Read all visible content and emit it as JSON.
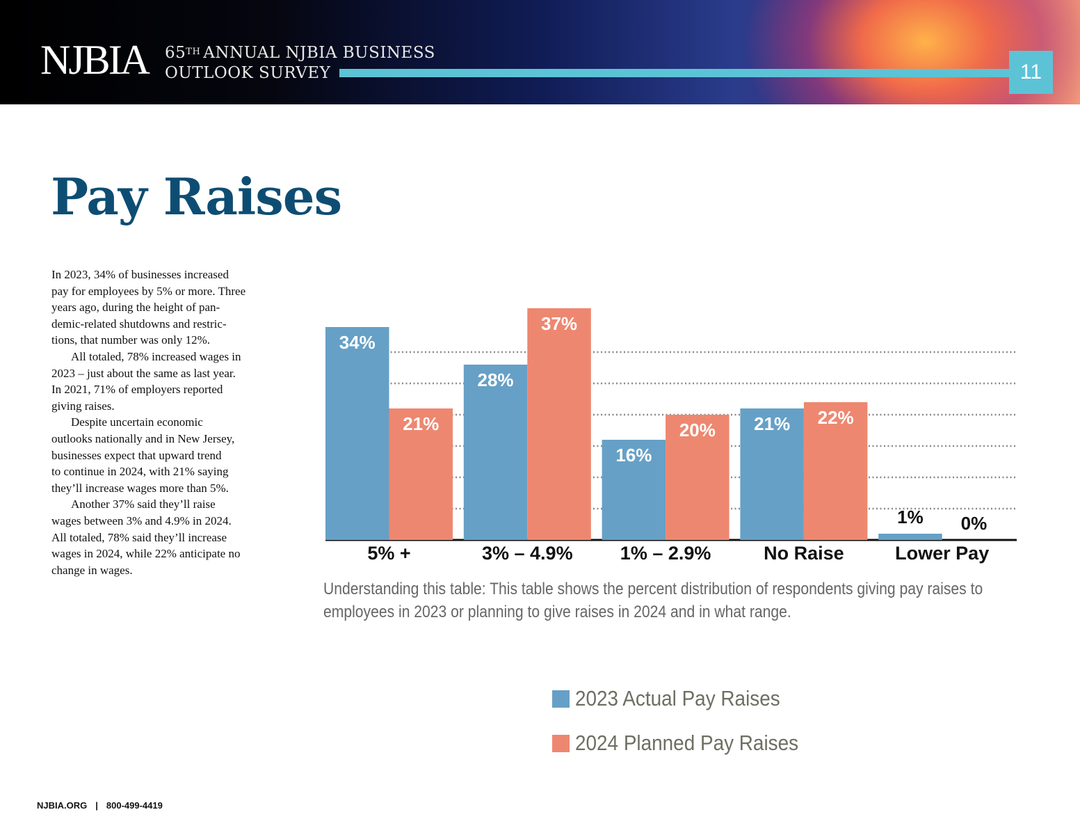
{
  "header": {
    "logo": "NJBIA",
    "survey_number": "65",
    "survey_number_suffix": "TH",
    "survey_line1": "ANNUAL NJBIA BUSINESS",
    "survey_line2": "OUTLOOK SURVEY",
    "page_number": "11"
  },
  "title": "Pay Raises",
  "body": {
    "paragraphs": [
      {
        "lines": [
          "In 2023, 34% of businesses increased",
          "pay for employees by 5% or more. Three",
          "years ago, during the height of pan-",
          "demic-related shutdowns and restric-",
          "tions, that number was only 12%."
        ]
      },
      {
        "lines": [
          "All totaled, 78% increased wages in",
          "2023 – just about the same as last year.",
          "In 2021, 71% of employers reported",
          "giving raises."
        ]
      },
      {
        "lines": [
          "Despite uncertain economic",
          "outlooks nationally and in New Jersey,",
          "businesses expect that upward trend",
          "to continue in 2024, with 21% saying",
          "they’ll increase wages more than 5%."
        ]
      },
      {
        "lines": [
          "Another 37% said they’ll raise",
          "wages between 3% and 4.9% in 2024.",
          "All totaled, 78% said they’ll increase",
          "wages in 2024, while 22% anticipate no",
          "change in wages."
        ]
      }
    ]
  },
  "chart_data": {
    "type": "bar",
    "categories": [
      "5% +",
      "3% – 4.9%",
      "1% – 2.9%",
      "No Raise",
      "Lower Pay"
    ],
    "series": [
      {
        "name": "2023 Actual Pay Raises",
        "color": "#66a0c6",
        "values": [
          34,
          28,
          16,
          21,
          1
        ],
        "value_labels": [
          "34%",
          "28%",
          "16%",
          "21%",
          "1%"
        ]
      },
      {
        "name": "2024 Planned Pay Raises",
        "color": "#ee8770",
        "values": [
          21,
          37,
          20,
          22,
          0
        ],
        "value_labels": [
          "21%",
          "37%",
          "20%",
          "22%",
          "0%"
        ]
      }
    ],
    "ylim": [
      0,
      38
    ],
    "yticks": [
      0,
      5,
      10,
      15,
      20,
      25,
      30
    ],
    "grid": true,
    "note": "Understanding this table: This table shows the percent distribution of respondents giving pay raises to employees in 2023 or planning to give raises in 2024 and in what range."
  },
  "footer": {
    "website": "NJBIA.ORG",
    "phone": "800-499-4419"
  }
}
